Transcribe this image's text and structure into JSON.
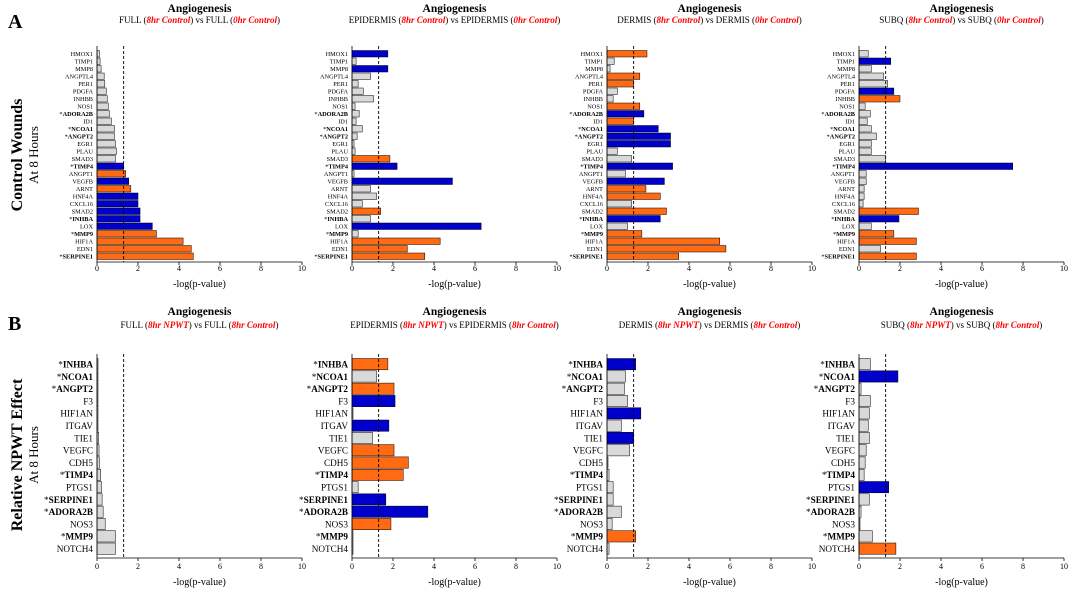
{
  "colors": {
    "up": "#ff6a13",
    "down": "#0000cc",
    "ns": "#d9d9d9",
    "highlight": "#ff0000",
    "bar_stroke": "#000000"
  },
  "threshold": 1.3,
  "section_a": {
    "label": "A",
    "row_label": "Control Wounds",
    "row_sublabel": "At 8 Hours",
    "genes": [
      {
        "name": "HMOX1",
        "sig": false
      },
      {
        "name": "TIMP1",
        "sig": false
      },
      {
        "name": "MMP8",
        "sig": false
      },
      {
        "name": "ANGPTL4",
        "sig": false
      },
      {
        "name": "PER1",
        "sig": false
      },
      {
        "name": "PDGFA",
        "sig": false
      },
      {
        "name": "INHBB",
        "sig": false
      },
      {
        "name": "NOS1",
        "sig": false
      },
      {
        "name": "ADORA2B",
        "sig": true
      },
      {
        "name": "ID1",
        "sig": false
      },
      {
        "name": "NCOA1",
        "sig": true
      },
      {
        "name": "ANGPT2",
        "sig": true
      },
      {
        "name": "EGR1",
        "sig": false
      },
      {
        "name": "PLAU",
        "sig": false
      },
      {
        "name": "SMAD3",
        "sig": false
      },
      {
        "name": "TIMP4",
        "sig": true
      },
      {
        "name": "ANGPT1",
        "sig": false
      },
      {
        "name": "VEGFB",
        "sig": false
      },
      {
        "name": "ARNT",
        "sig": false
      },
      {
        "name": "HNF4A",
        "sig": false
      },
      {
        "name": "CXCL16",
        "sig": false
      },
      {
        "name": "SMAD2",
        "sig": false
      },
      {
        "name": "INHBA",
        "sig": true
      },
      {
        "name": "LOX",
        "sig": false
      },
      {
        "name": "MMP9",
        "sig": true
      },
      {
        "name": "HIF1A",
        "sig": false
      },
      {
        "name": "EDN1",
        "sig": false
      },
      {
        "name": "SERPINE1",
        "sig": true
      }
    ]
  },
  "section_b": {
    "label": "B",
    "row_label": "Relative NPWT Effect",
    "row_sublabel": "At 8 Hours",
    "genes": [
      {
        "name": "INHBA",
        "sig": true
      },
      {
        "name": "NCOA1",
        "sig": true
      },
      {
        "name": "ANGPT2",
        "sig": true
      },
      {
        "name": "F3",
        "sig": false
      },
      {
        "name": "HIF1AN",
        "sig": false
      },
      {
        "name": "ITGAV",
        "sig": false
      },
      {
        "name": "TIE1",
        "sig": false
      },
      {
        "name": "VEGFC",
        "sig": false
      },
      {
        "name": "CDH5",
        "sig": false
      },
      {
        "name": "TIMP4",
        "sig": true
      },
      {
        "name": "PTGS1",
        "sig": false
      },
      {
        "name": "SERPINE1",
        "sig": true
      },
      {
        "name": "ADORA2B",
        "sig": true
      },
      {
        "name": "NOS3",
        "sig": false
      },
      {
        "name": "MMP9",
        "sig": true
      },
      {
        "name": "NOTCH4",
        "sig": false
      }
    ]
  },
  "chart_data": [
    {
      "type": "bar",
      "orientation": "horizontal",
      "section": "A",
      "title": "Angiogenesis",
      "subtitle": [
        {
          "t": "FULL (",
          "c": "k"
        },
        {
          "t": "8hr Control",
          "c": "r"
        },
        {
          "t": ") vs FULL (",
          "c": "k"
        },
        {
          "t": "0hr Control",
          "c": "r"
        },
        {
          "t": ")",
          "c": "k"
        }
      ],
      "xlabel": "-log(p-value)",
      "xlim": [
        0,
        10
      ],
      "xticks": [
        0,
        2,
        4,
        6,
        8,
        10
      ],
      "values": [
        0.12,
        0.15,
        0.2,
        0.35,
        0.38,
        0.45,
        0.5,
        0.55,
        0.6,
        0.7,
        0.85,
        0.85,
        0.9,
        0.95,
        0.9,
        1.3,
        1.4,
        1.55,
        1.65,
        2,
        2,
        2.1,
        2.1,
        2.7,
        2.9,
        4.2,
        4.6,
        4.7
      ],
      "dirs": [
        "n",
        "n",
        "n",
        "n",
        "n",
        "n",
        "n",
        "n",
        "n",
        "n",
        "n",
        "n",
        "n",
        "n",
        "n",
        "d",
        "u",
        "d",
        "u",
        "d",
        "d",
        "d",
        "d",
        "d",
        "u",
        "u",
        "u",
        "u"
      ]
    },
    {
      "type": "bar",
      "orientation": "horizontal",
      "section": "A",
      "title": "Angiogenesis",
      "subtitle": [
        {
          "t": "EPIDERMIS (",
          "c": "k"
        },
        {
          "t": "8hr Control",
          "c": "r"
        },
        {
          "t": ") vs EPIDERMIS (",
          "c": "k"
        },
        {
          "t": "0hr Control",
          "c": "r"
        },
        {
          "t": ")",
          "c": "k"
        }
      ],
      "xlabel": "-log(p-value)",
      "xlim": [
        0,
        10
      ],
      "xticks": [
        0,
        2,
        4,
        6,
        8,
        10
      ],
      "values": [
        1.75,
        0.2,
        1.75,
        0.9,
        0.3,
        0.55,
        1.05,
        0.15,
        0.35,
        0.2,
        0.5,
        0.25,
        0.1,
        0.15,
        1.85,
        2.2,
        0.1,
        4.9,
        0.9,
        1.2,
        0.5,
        1.4,
        0.9,
        6.3,
        0.3,
        4.3,
        2.7,
        3.55
      ],
      "dirs": [
        "d",
        "n",
        "d",
        "n",
        "n",
        "n",
        "n",
        "n",
        "n",
        "n",
        "n",
        "n",
        "n",
        "n",
        "u",
        "d",
        "n",
        "d",
        "n",
        "n",
        "n",
        "u",
        "n",
        "d",
        "n",
        "u",
        "u",
        "u"
      ]
    },
    {
      "type": "bar",
      "orientation": "horizontal",
      "section": "A",
      "title": "Angiogenesis",
      "subtitle": [
        {
          "t": "DERMIS (",
          "c": "k"
        },
        {
          "t": "8hr Control",
          "c": "r"
        },
        {
          "t": ") vs DERMIS (",
          "c": "k"
        },
        {
          "t": "0hr Control",
          "c": "r"
        },
        {
          "t": ")",
          "c": "k"
        }
      ],
      "xlabel": "-log(p-value)",
      "xlim": [
        0,
        10
      ],
      "xticks": [
        0,
        2,
        4,
        6,
        8,
        10
      ],
      "values": [
        1.95,
        0.35,
        0.15,
        1.6,
        1.3,
        0.5,
        0.3,
        1.6,
        1.8,
        1.3,
        2.5,
        3.1,
        3.1,
        0.5,
        1.2,
        3.2,
        0.9,
        2.8,
        1.9,
        2.6,
        1.2,
        2.9,
        2.6,
        1.0,
        1.7,
        5.5,
        5.8,
        3.5
      ],
      "dirs": [
        "u",
        "n",
        "n",
        "u",
        "u",
        "n",
        "n",
        "u",
        "d",
        "u",
        "d",
        "d",
        "d",
        "n",
        "n",
        "d",
        "n",
        "d",
        "u",
        "u",
        "n",
        "u",
        "d",
        "n",
        "u",
        "u",
        "u",
        "u"
      ]
    },
    {
      "type": "bar",
      "orientation": "horizontal",
      "section": "A",
      "title": "Angiogenesis",
      "subtitle": [
        {
          "t": "SUBQ (",
          "c": "k"
        },
        {
          "t": "8hr Control",
          "c": "r"
        },
        {
          "t": ") vs SUBQ (",
          "c": "k"
        },
        {
          "t": "0hr Control",
          "c": "r"
        },
        {
          "t": ")",
          "c": "k"
        }
      ],
      "xlabel": "-log(p-value)",
      "xlim": [
        0,
        10
      ],
      "xticks": [
        0,
        2,
        4,
        6,
        8,
        10
      ],
      "values": [
        0.45,
        1.55,
        0.6,
        1.2,
        1.4,
        1.7,
        2.0,
        0.3,
        0.55,
        0.4,
        0.6,
        0.85,
        0.6,
        0.6,
        1.3,
        7.5,
        0.35,
        0.35,
        0.25,
        0.25,
        0.2,
        2.9,
        1.95,
        0.6,
        1.7,
        2.8,
        1.05,
        2.8
      ],
      "dirs": [
        "n",
        "d",
        "n",
        "n",
        "n",
        "d",
        "u",
        "n",
        "n",
        "n",
        "n",
        "n",
        "n",
        "n",
        "n",
        "d",
        "n",
        "n",
        "n",
        "n",
        "n",
        "u",
        "d",
        "n",
        "u",
        "u",
        "n",
        "u"
      ]
    },
    {
      "type": "bar",
      "orientation": "horizontal",
      "section": "B",
      "title": "Angiogenesis",
      "subtitle": [
        {
          "t": "FULL (",
          "c": "k"
        },
        {
          "t": "8hr NPWT",
          "c": "r"
        },
        {
          "t": ") vs FULL (",
          "c": "k"
        },
        {
          "t": "8hr Control",
          "c": "r"
        },
        {
          "t": ")",
          "c": "k"
        }
      ],
      "xlabel": "-log(p-value)",
      "xlim": [
        0,
        10
      ],
      "xticks": [
        0,
        2,
        4,
        6,
        8,
        10
      ],
      "values": [
        0.05,
        0.05,
        0.05,
        0.05,
        0.05,
        0.05,
        0.08,
        0.1,
        0.12,
        0.18,
        0.22,
        0.25,
        0.3,
        0.4,
        0.9,
        0.9
      ],
      "dirs": [
        "n",
        "n",
        "n",
        "n",
        "n",
        "n",
        "n",
        "n",
        "n",
        "n",
        "n",
        "n",
        "n",
        "n",
        "n",
        "n"
      ]
    },
    {
      "type": "bar",
      "orientation": "horizontal",
      "section": "B",
      "title": "Angiogenesis",
      "subtitle": [
        {
          "t": "EPIDERMIS (",
          "c": "k"
        },
        {
          "t": "8hr NPWT",
          "c": "r"
        },
        {
          "t": ") vs EPIDERMIS (",
          "c": "k"
        },
        {
          "t": "8hr Control",
          "c": "r"
        },
        {
          "t": ")",
          "c": "k"
        }
      ],
      "xlabel": "-log(p-value)",
      "xlim": [
        0,
        10
      ],
      "xticks": [
        0,
        2,
        4,
        6,
        8,
        10
      ],
      "values": [
        1.75,
        1.2,
        2.05,
        2.1,
        0.05,
        1.8,
        1.0,
        2.05,
        2.75,
        2.5,
        0.3,
        1.65,
        3.7,
        1.9,
        0.05,
        0.05
      ],
      "dirs": [
        "u",
        "n",
        "u",
        "d",
        "n",
        "d",
        "n",
        "u",
        "u",
        "u",
        "n",
        "d",
        "d",
        "u",
        "n",
        "n"
      ]
    },
    {
      "type": "bar",
      "orientation": "horizontal",
      "section": "B",
      "title": "Angiogenesis",
      "subtitle": [
        {
          "t": "DERMIS (",
          "c": "k"
        },
        {
          "t": "8hr NPWT",
          "c": "r"
        },
        {
          "t": ") vs DERMIS (",
          "c": "k"
        },
        {
          "t": "8hr Control",
          "c": "r"
        },
        {
          "t": ")",
          "c": "k"
        }
      ],
      "xlabel": "-log(p-value)",
      "xlim": [
        0,
        10
      ],
      "xticks": [
        0,
        2,
        4,
        6,
        8,
        10
      ],
      "values": [
        1.4,
        0.9,
        0.85,
        1.0,
        1.65,
        0.7,
        1.3,
        1.1,
        0.05,
        0.1,
        0.3,
        0.3,
        0.7,
        0.25,
        1.4,
        0.1
      ],
      "dirs": [
        "d",
        "n",
        "n",
        "n",
        "d",
        "n",
        "d",
        "n",
        "n",
        "n",
        "n",
        "n",
        "n",
        "n",
        "u",
        "n"
      ]
    },
    {
      "type": "bar",
      "orientation": "horizontal",
      "section": "B",
      "title": "Angiogenesis",
      "subtitle": [
        {
          "t": "SUBQ (",
          "c": "k"
        },
        {
          "t": "8hr NPWT",
          "c": "r"
        },
        {
          "t": ") vs SUBQ (",
          "c": "k"
        },
        {
          "t": "8hr Control",
          "c": "r"
        },
        {
          "t": ")",
          "c": "k"
        }
      ],
      "xlabel": "-log(p-value)",
      "xlim": [
        0,
        10
      ],
      "xticks": [
        0,
        2,
        4,
        6,
        8,
        10
      ],
      "values": [
        0.55,
        1.9,
        0.1,
        0.55,
        0.5,
        0.45,
        0.5,
        0.35,
        0.3,
        0.25,
        1.45,
        0.5,
        0.1,
        0.05,
        0.65,
        1.8
      ],
      "dirs": [
        "n",
        "d",
        "n",
        "n",
        "n",
        "n",
        "n",
        "n",
        "n",
        "n",
        "d",
        "n",
        "n",
        "n",
        "n",
        "u"
      ]
    }
  ]
}
